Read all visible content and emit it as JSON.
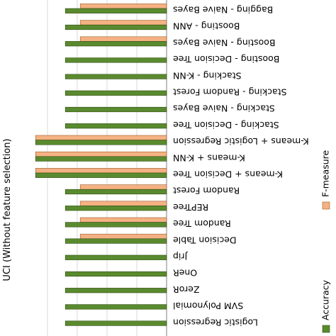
{
  "chart_data": {
    "type": "bar",
    "orientation": "horizontal",
    "display": "mirrored (image flipped vertically and horizontally)",
    "title": "UCI (Without feature selection)",
    "categories": [
      "Bagging - Naive Bayes",
      "Boosting - ANN",
      "Boosting - Naive Bayes",
      "Boosting - Decision Tree",
      "Stacking - K-NN",
      "Stacking - Random Forest",
      "Stacking - Naive Bayes",
      "Stacking - Decision Tree",
      "K-means + Logistic Regression",
      "K-means + K-NN",
      "K-means + Decision Tree",
      "Random Forest",
      "REPTree",
      "Random Tree",
      "Decision Table",
      "Jrip",
      "OneR",
      "ZeroR",
      "SVM Polynomial",
      "Logistic Regression"
    ],
    "series": [
      {
        "name": "Accuracy",
        "color": "#5a8a2e",
        "values": [
          0.68,
          0.68,
          0.68,
          0.68,
          0.68,
          0.68,
          0.68,
          0.68,
          0.88,
          0.88,
          0.88,
          0.68,
          0.68,
          0.68,
          0.68,
          0.68,
          0.68,
          0.68,
          0.68,
          0.68
        ]
      },
      {
        "name": "F-measure",
        "color": "#f4b183",
        "values": [
          0.58,
          0.58,
          0.58,
          0.0,
          0.0,
          0.0,
          0.0,
          0.0,
          0.88,
          0.88,
          0.88,
          0.58,
          0.58,
          0.58,
          0.58,
          0.0,
          0.0,
          0.0,
          0.0,
          0.0
        ]
      }
    ],
    "xlim": [
      0,
      1
    ],
    "grid": true,
    "legend": "right"
  }
}
